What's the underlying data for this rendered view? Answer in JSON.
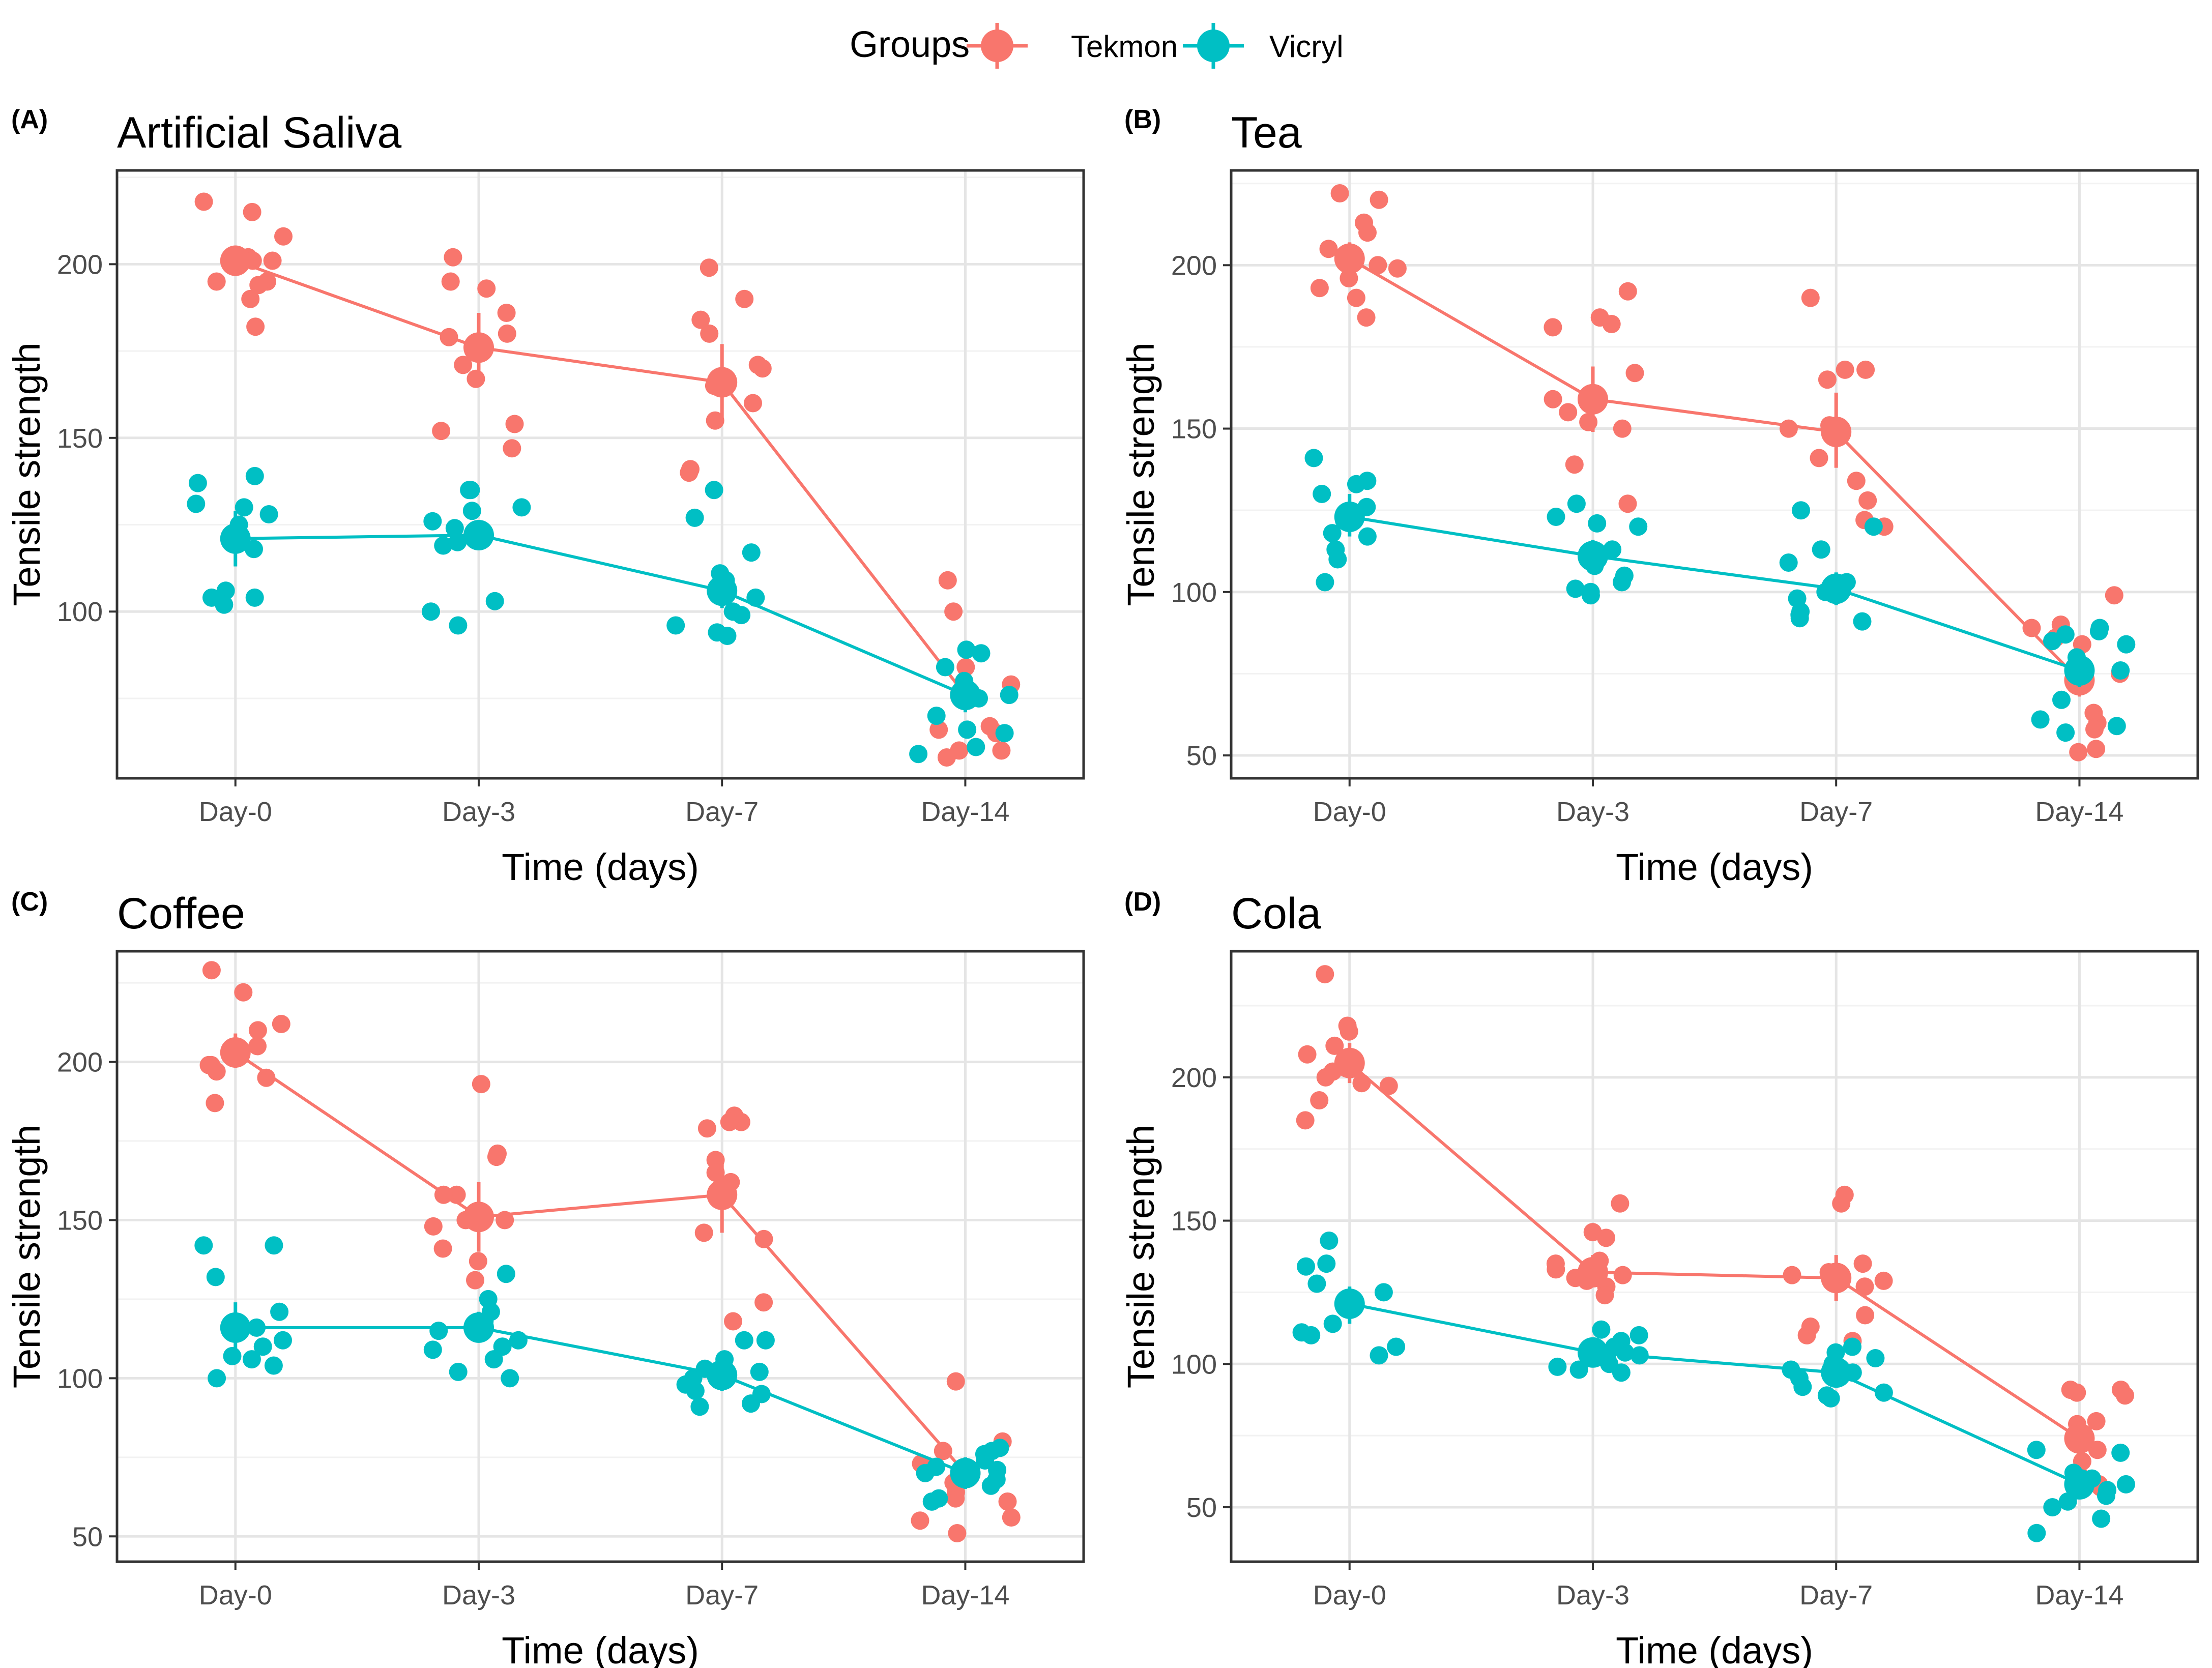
{
  "legend": {
    "title": "Groups",
    "items": [
      {
        "name": "Tekmon",
        "color": "#F8766D"
      },
      {
        "name": "Vicryl",
        "color": "#00BFC4"
      }
    ]
  },
  "chart_data": [
    {
      "type": "scatter",
      "panel": "(A)",
      "title": "Artificial Saliva",
      "xlabel": "Time (days)",
      "ylabel": "Tensile strength",
      "categories": [
        "Day-0",
        "Day-3",
        "Day-7",
        "Day-14"
      ],
      "ylim": [
        52,
        227
      ],
      "yticks": [
        100,
        150,
        200
      ],
      "grid": true,
      "series": [
        {
          "name": "Tekmon",
          "means": [
            201,
            176,
            166,
            76
          ],
          "ci": [
            [
              197,
              205
            ],
            [
              167,
              186
            ],
            [
              155,
              177
            ],
            [
              72,
              80
            ]
          ],
          "points": [
            [
              190,
              195,
              202,
              208,
              201,
              215,
              218,
              201,
              182,
              195,
              194
            ],
            [
              171,
              180,
              179,
              193,
              202,
              195,
              186,
              154,
              147,
              152,
              167
            ],
            [
              190,
              199,
              184,
              180,
              170,
              171,
              165,
              155,
              160,
              141,
              140
            ],
            [
              109,
              100,
              84,
              79,
              75,
              67,
              66,
              60,
              60,
              65,
              58
            ]
          ]
        },
        {
          "name": "Vicryl",
          "means": [
            121,
            122,
            106,
            76
          ],
          "ci": [
            [
              113,
              129
            ],
            [
              118,
              126
            ],
            [
              101,
              111
            ],
            [
              71,
              81
            ]
          ],
          "points": [
            [
              125,
              128,
              139,
              137,
              130,
              131,
              118,
              106,
              104,
              104,
              102
            ],
            [
              135,
              135,
              130,
              129,
              126,
              124,
              119,
              103,
              100,
              96,
              120
            ],
            [
              135,
              127,
              117,
              111,
              109,
              104,
              100,
              99,
              96,
              93,
              94
            ],
            [
              89,
              88,
              84,
              80,
              76,
              70,
              66,
              65,
              61,
              59,
              75
            ]
          ]
        }
      ]
    },
    {
      "type": "scatter",
      "panel": "(B)",
      "title": "Tea",
      "xlabel": "Time (days)",
      "ylabel": "Tensile strength",
      "categories": [
        "Day-0",
        "Day-3",
        "Day-7",
        "Day-14"
      ],
      "ylim": [
        43,
        229
      ],
      "yticks": [
        50,
        100,
        150,
        200
      ],
      "grid": true,
      "series": [
        {
          "name": "Tekmon",
          "means": [
            202,
            159,
            149,
            73
          ],
          "ci": [
            [
              197,
              207
            ],
            [
              149,
              169
            ],
            [
              138,
              161
            ],
            [
              68,
              79
            ]
          ],
          "points": [
            [
              213,
              222,
              220,
              210,
              205,
              200,
              199,
              196,
              193,
              190,
              184
            ],
            [
              192,
              184,
              182,
              181,
              167,
              159,
              155,
              152,
              150,
              139,
              127
            ],
            [
              190,
              168,
              165,
              151,
              150,
              141,
              134,
              128,
              122,
              120,
              168
            ],
            [
              99,
              90,
              89,
              86,
              84,
              63,
              60,
              52,
              51,
              58,
              75
            ]
          ]
        },
        {
          "name": "Vicryl",
          "means": [
            123,
            111,
            101,
            76
          ],
          "ci": [
            [
              117,
              130
            ],
            [
              106,
              116
            ],
            [
              96,
              106
            ],
            [
              71,
              81
            ]
          ],
          "points": [
            [
              134,
              141,
              133,
              130,
              126,
              122,
              118,
              117,
              113,
              110,
              103
            ],
            [
              127,
              123,
              121,
              120,
              113,
              108,
              105,
              103,
              101,
              100,
              99
            ],
            [
              125,
              120,
              113,
              109,
              103,
              100,
              98,
              94,
              93,
              92,
              91
            ],
            [
              89,
              88,
              87,
              85,
              80,
              76,
              67,
              61,
              59,
              57,
              84
            ]
          ]
        }
      ]
    },
    {
      "type": "scatter",
      "panel": "(C)",
      "title": "Coffee",
      "xlabel": "Time (days)",
      "ylabel": "Tensile strength",
      "categories": [
        "Day-0",
        "Day-3",
        "Day-7",
        "Day-14"
      ],
      "ylim": [
        42,
        235
      ],
      "yticks": [
        50,
        100,
        150,
        200
      ],
      "grid": true,
      "series": [
        {
          "name": "Tekmon",
          "means": [
            203,
            151,
            158,
            70
          ],
          "ci": [
            [
              198,
              209
            ],
            [
              140,
              162
            ],
            [
              146,
              170
            ],
            [
              65,
              75
            ]
          ],
          "points": [
            [
              199,
              199,
              222,
              212,
              229,
              210,
              197,
              195,
              187,
              203,
              205
            ],
            [
              193,
              171,
              170,
              158,
              158,
              150,
              148,
              141,
              137,
              131,
              150
            ],
            [
              181,
              183,
              181,
              179,
              169,
              165,
              162,
              146,
              144,
              124,
              118
            ],
            [
              99,
              80,
              77,
              73,
              64,
              62,
              61,
              56,
              55,
              51,
              67
            ]
          ]
        },
        {
          "name": "Vicryl",
          "means": [
            116,
            116,
            101,
            70
          ],
          "ci": [
            [
              108,
              124
            ],
            [
              112,
              121
            ],
            [
              96,
              106
            ],
            [
              65,
              75
            ]
          ],
          "points": [
            [
              142,
              142,
              132,
              121,
              116,
              112,
              110,
              107,
              106,
              104,
              100
            ],
            [
              133,
              125,
              121,
              118,
              115,
              112,
              110,
              109,
              106,
              102,
              100
            ],
            [
              112,
              112,
              106,
              102,
              100,
              98,
              96,
              95,
              92,
              91,
              103
            ],
            [
              78,
              77,
              76,
              74,
              72,
              71,
              68,
              66,
              62,
              61,
              70
            ]
          ]
        }
      ]
    },
    {
      "type": "scatter",
      "panel": "(D)",
      "title": "Cola",
      "xlabel": "Time (days)",
      "ylabel": "Tensile strength",
      "categories": [
        "Day-0",
        "Day-3",
        "Day-7",
        "Day-14"
      ],
      "ylim": [
        31,
        244
      ],
      "yticks": [
        50,
        100,
        150,
        200
      ],
      "grid": true,
      "series": [
        {
          "name": "Tekmon",
          "means": [
            205,
            132,
            130,
            74
          ],
          "ci": [
            [
              198,
              212
            ],
            [
              127,
              138
            ],
            [
              122,
              138
            ],
            [
              68,
              80
            ]
          ],
          "points": [
            [
              236,
              211,
              218,
              216,
              208,
              202,
              198,
              197,
              192,
              185,
              200
            ],
            [
              156,
              146,
              144,
              136,
              135,
              131,
              129,
              127,
              124,
              130,
              133
            ],
            [
              159,
              156,
              135,
              132,
              131,
              129,
              127,
              117,
              113,
              110,
              108
            ],
            [
              91,
              91,
              90,
              89,
              80,
              79,
              70,
              66,
              61,
              58,
              57
            ]
          ]
        },
        {
          "name": "Vicryl",
          "means": [
            121,
            104,
            97,
            58
          ],
          "ci": [
            [
              114,
              127
            ],
            [
              100,
              108
            ],
            [
              92,
              102
            ],
            [
              53,
              63
            ]
          ],
          "points": [
            [
              143,
              135,
              134,
              128,
              125,
              121,
              114,
              111,
              110,
              106,
              103
            ],
            [
              112,
              110,
              108,
              106,
              104,
              103,
              102,
              100,
              99,
              97,
              98
            ],
            [
              106,
              104,
              102,
              100,
              98,
              97,
              95,
              92,
              90,
              89,
              88
            ],
            [
              70,
              69,
              62,
              60,
              58,
              56,
              54,
              52,
              50,
              46,
              41
            ]
          ]
        }
      ]
    }
  ]
}
